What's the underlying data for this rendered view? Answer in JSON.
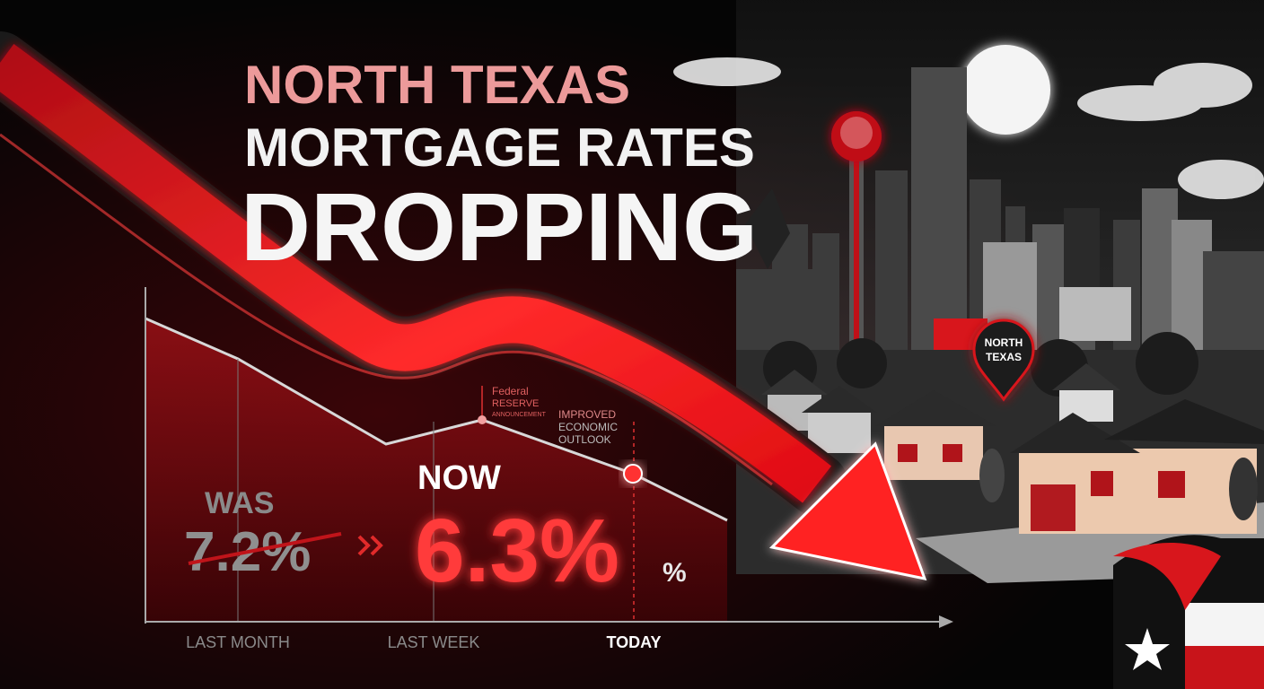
{
  "headline": {
    "lines": [
      "NORTH TEXAS",
      "MORTGAGE RATES",
      "DROPPING"
    ]
  },
  "chart": {
    "annotations": [
      {
        "lines": [
          "Federal",
          "RESERVE",
          "ANNOUNCEMENT"
        ]
      },
      {
        "lines": [
          "IMPROVED",
          "ECONOMIC",
          "OUTLOOK"
        ]
      }
    ],
    "was": {
      "label": "WAS",
      "value": "7.2%"
    },
    "now": {
      "label": "NOW",
      "value": "6.3%",
      "suffix": "%"
    },
    "x_labels": [
      "LAST MONTH",
      "LAST WEEK",
      "TODAY"
    ]
  },
  "pin": {
    "lines": [
      "NORTH",
      "TEXAS"
    ]
  }
}
